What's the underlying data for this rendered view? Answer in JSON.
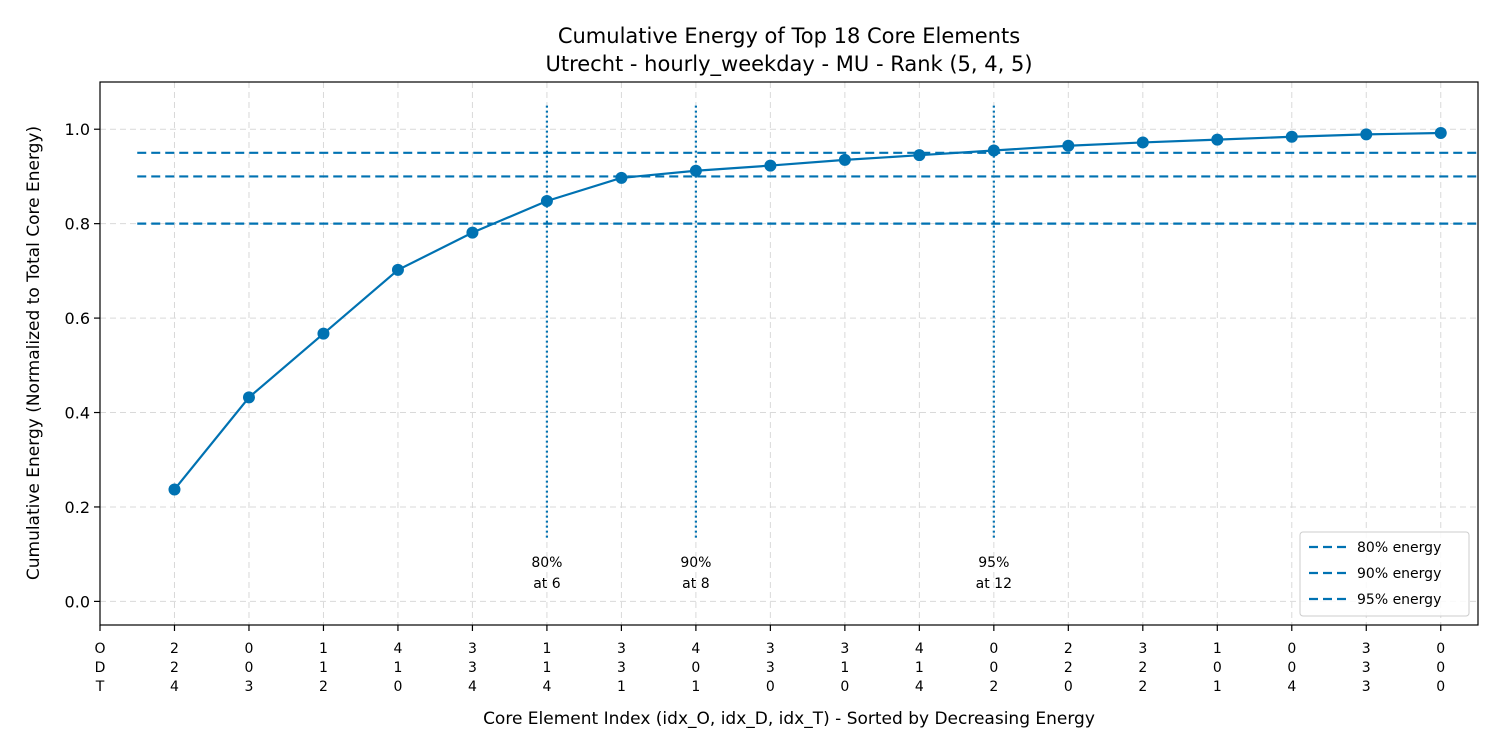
{
  "chart_data": {
    "type": "line",
    "title": "Cumulative Energy of Top 18 Core Elements",
    "subtitle": "Utrecht - hourly_weekday - MU - Rank (5, 4, 5)",
    "xlabel": "Core Element Index (idx_O, idx_D, idx_T) - Sorted by Decreasing Energy",
    "ylabel": "Cumulative Energy (Normalized to Total Core Energy)",
    "ylim": [
      -0.05,
      1.1
    ],
    "xlim": [
      0,
      18.5
    ],
    "yticks": [
      "0.0",
      "0.2",
      "0.4",
      "0.6",
      "0.8",
      "1.0"
    ],
    "grid": true,
    "x_axis_row_labels": [
      "O",
      "D",
      "T"
    ],
    "categories": [
      [
        "2",
        "2",
        "4"
      ],
      [
        "0",
        "0",
        "3"
      ],
      [
        "1",
        "1",
        "2"
      ],
      [
        "4",
        "1",
        "0"
      ],
      [
        "3",
        "3",
        "4"
      ],
      [
        "1",
        "1",
        "4"
      ],
      [
        "3",
        "3",
        "1"
      ],
      [
        "4",
        "0",
        "1"
      ],
      [
        "3",
        "3",
        "0"
      ],
      [
        "3",
        "1",
        "0"
      ],
      [
        "4",
        "1",
        "4"
      ],
      [
        "0",
        "0",
        "2"
      ],
      [
        "2",
        "2",
        "0"
      ],
      [
        "3",
        "2",
        "2"
      ],
      [
        "1",
        "0",
        "1"
      ],
      [
        "0",
        "0",
        "4"
      ],
      [
        "3",
        "3",
        "3"
      ],
      [
        "0",
        "0",
        "0"
      ]
    ],
    "series": [
      {
        "x": [
          1,
          2,
          3,
          4,
          5,
          6,
          7,
          8,
          9,
          10,
          11,
          12,
          13,
          14,
          15,
          16,
          17,
          18
        ],
        "values": [
          0.237,
          0.432,
          0.567,
          0.702,
          0.781,
          0.848,
          0.897,
          0.912,
          0.923,
          0.935,
          0.945,
          0.955,
          0.965,
          0.972,
          0.978,
          0.984,
          0.989,
          0.992
        ]
      }
    ],
    "thresholds": [
      {
        "value": 0.8,
        "legend": "80% energy",
        "at": 6,
        "annotation": [
          "80%",
          "at 6"
        ]
      },
      {
        "value": 0.9,
        "legend": "90% energy",
        "at": 8,
        "annotation": [
          "90%",
          "at 8"
        ]
      },
      {
        "value": 0.95,
        "legend": "95% energy",
        "at": 12,
        "annotation": [
          "95%",
          "at 12"
        ]
      }
    ],
    "legend_position": "bottom-right",
    "colors": {
      "line": "#0072b2",
      "grid": "#d9d9d9"
    }
  }
}
